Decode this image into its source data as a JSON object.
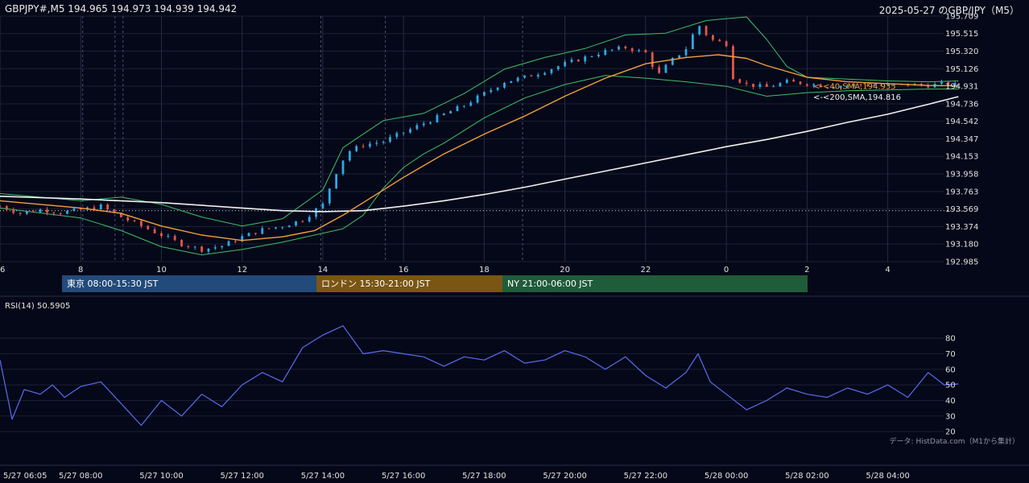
{
  "header": {
    "symbol_line": "GBPJPY#,M5 194.965 194.973 194.939 194.942",
    "title": "2025-05-27 のGBP/JPY（M5）"
  },
  "colors": {
    "background": "#050818",
    "bull": "#2fa8e6",
    "bear": "#e2574c",
    "sma40": "#f3a03c",
    "sma200": "#f0f0f0",
    "bollinger": "#3fbf6a",
    "rsi": "#5a6cf0"
  },
  "sessions": [
    {
      "label": "東京 08:00-15:30 JST",
      "color": "#224a7a"
    },
    {
      "label": "ロンドン 15:30-21:00 JST",
      "color": "#7a5513"
    },
    {
      "label": "NY 21:00-06:00 JST",
      "color": "#1f5c3a"
    }
  ],
  "rsi_panel": {
    "label": "RSI(14) 50.5905"
  },
  "credit": "データ: HistData.com（M1から集計）",
  "ma_labels": {
    "sma40": "<-<40,SMA,194.935",
    "sma200": "<-<200,SMA,194.816"
  },
  "chart_data": [
    {
      "type": "candlestick",
      "title": "2025-05-27 のGBP/JPY（M5）",
      "ylim": [
        192.985,
        195.709
      ],
      "y_ticks": [
        195.709,
        195.515,
        195.32,
        195.126,
        194.931,
        194.736,
        194.542,
        194.347,
        194.153,
        193.958,
        193.763,
        193.569,
        193.374,
        193.18,
        192.985
      ],
      "x_ticks": [
        "6",
        "8",
        "10",
        "12",
        "14",
        "16",
        "18",
        "20",
        "22",
        "0",
        "2",
        "4"
      ],
      "x_tick_hours": [
        6,
        8,
        10,
        12,
        14,
        16,
        18,
        20,
        22,
        24,
        26,
        28
      ],
      "x_range_hours": [
        6,
        31.5
      ],
      "data_end_hour": 29.75,
      "reference_line": 193.55,
      "price_path": [
        [
          6.0,
          193.6
        ],
        [
          6.5,
          193.52
        ],
        [
          7.0,
          193.56
        ],
        [
          7.5,
          193.53
        ],
        [
          8.0,
          193.56
        ],
        [
          8.5,
          193.6
        ],
        [
          9.0,
          193.48
        ],
        [
          9.5,
          193.38
        ],
        [
          10.0,
          193.28
        ],
        [
          10.5,
          193.18
        ],
        [
          11.0,
          193.12
        ],
        [
          11.5,
          193.16
        ],
        [
          12.0,
          193.26
        ],
        [
          12.5,
          193.34
        ],
        [
          13.0,
          193.38
        ],
        [
          13.5,
          193.45
        ],
        [
          14.0,
          193.62
        ],
        [
          14.3,
          193.95
        ],
        [
          14.6,
          194.2
        ],
        [
          15.0,
          194.28
        ],
        [
          15.5,
          194.32
        ],
        [
          16.0,
          194.42
        ],
        [
          16.5,
          194.52
        ],
        [
          17.0,
          194.62
        ],
        [
          17.5,
          194.72
        ],
        [
          18.0,
          194.85
        ],
        [
          18.5,
          194.98
        ],
        [
          19.0,
          195.03
        ],
        [
          19.5,
          195.1
        ],
        [
          20.0,
          195.18
        ],
        [
          20.5,
          195.25
        ],
        [
          21.0,
          195.32
        ],
        [
          21.5,
          195.36
        ],
        [
          22.0,
          195.3
        ],
        [
          22.3,
          195.05
        ],
        [
          22.6,
          195.2
        ],
        [
          23.0,
          195.35
        ],
        [
          23.3,
          195.62
        ],
        [
          23.6,
          195.45
        ],
        [
          24.0,
          195.4
        ],
        [
          24.1,
          195.05
        ],
        [
          24.5,
          194.95
        ],
        [
          25.0,
          194.92
        ],
        [
          25.5,
          194.98
        ],
        [
          26.0,
          194.96
        ],
        [
          26.5,
          194.93
        ],
        [
          27.0,
          194.94
        ],
        [
          27.5,
          194.95
        ],
        [
          28.0,
          194.94
        ],
        [
          28.5,
          194.95
        ],
        [
          29.0,
          194.94
        ],
        [
          29.4,
          194.96
        ],
        [
          29.75,
          194.942
        ]
      ],
      "sma40": [
        [
          6.0,
          193.66
        ],
        [
          7.0,
          193.62
        ],
        [
          8.0,
          193.58
        ],
        [
          9.0,
          193.52
        ],
        [
          10.0,
          193.38
        ],
        [
          11.0,
          193.28
        ],
        [
          12.0,
          193.22
        ],
        [
          13.0,
          193.26
        ],
        [
          13.8,
          193.33
        ],
        [
          14.5,
          193.5
        ],
        [
          15.0,
          193.64
        ],
        [
          16.0,
          193.92
        ],
        [
          17.0,
          194.18
        ],
        [
          18.0,
          194.4
        ],
        [
          19.0,
          194.6
        ],
        [
          20.0,
          194.82
        ],
        [
          21.0,
          195.02
        ],
        [
          22.0,
          195.18
        ],
        [
          23.0,
          195.25
        ],
        [
          23.8,
          195.28
        ],
        [
          24.5,
          195.24
        ],
        [
          25.0,
          195.16
        ],
        [
          26.0,
          195.03
        ],
        [
          27.0,
          194.98
        ],
        [
          28.0,
          194.96
        ],
        [
          29.0,
          194.94
        ],
        [
          29.75,
          194.935
        ]
      ],
      "sma200": [
        [
          6.0,
          193.71
        ],
        [
          8.0,
          193.68
        ],
        [
          10.0,
          193.64
        ],
        [
          12.0,
          193.58
        ],
        [
          13.0,
          193.55
        ],
        [
          14.0,
          193.54
        ],
        [
          15.0,
          193.55
        ],
        [
          16.0,
          193.6
        ],
        [
          17.0,
          193.66
        ],
        [
          18.0,
          193.73
        ],
        [
          19.0,
          193.81
        ],
        [
          20.0,
          193.9
        ],
        [
          21.0,
          193.99
        ],
        [
          22.0,
          194.08
        ],
        [
          23.0,
          194.17
        ],
        [
          24.0,
          194.26
        ],
        [
          25.0,
          194.34
        ],
        [
          26.0,
          194.43
        ],
        [
          27.0,
          194.53
        ],
        [
          28.0,
          194.62
        ],
        [
          29.0,
          194.73
        ],
        [
          29.75,
          194.816
        ]
      ],
      "bb_upper": [
        [
          6.0,
          193.74
        ],
        [
          8.0,
          193.66
        ],
        [
          9.0,
          193.7
        ],
        [
          10.0,
          193.62
        ],
        [
          11.0,
          193.48
        ],
        [
          12.0,
          193.38
        ],
        [
          13.0,
          193.46
        ],
        [
          14.0,
          193.78
        ],
        [
          14.5,
          194.25
        ],
        [
          15.0,
          194.4
        ],
        [
          15.5,
          194.55
        ],
        [
          16.5,
          194.63
        ],
        [
          17.5,
          194.85
        ],
        [
          18.5,
          195.12
        ],
        [
          19.5,
          195.25
        ],
        [
          20.5,
          195.35
        ],
        [
          21.5,
          195.5
        ],
        [
          22.5,
          195.52
        ],
        [
          23.5,
          195.66
        ],
        [
          24.5,
          195.7
        ],
        [
          25.0,
          195.45
        ],
        [
          25.5,
          195.15
        ],
        [
          26.0,
          195.03
        ],
        [
          27.0,
          195.01
        ],
        [
          28.0,
          194.99
        ],
        [
          29.0,
          194.98
        ],
        [
          29.75,
          194.99
        ]
      ],
      "bb_lower": [
        [
          6.0,
          193.58
        ],
        [
          8.0,
          193.47
        ],
        [
          9.0,
          193.33
        ],
        [
          10.0,
          193.15
        ],
        [
          11.0,
          193.06
        ],
        [
          12.0,
          193.12
        ],
        [
          13.0,
          193.2
        ],
        [
          14.0,
          193.3
        ],
        [
          14.5,
          193.35
        ],
        [
          15.0,
          193.5
        ],
        [
          15.5,
          193.8
        ],
        [
          16.0,
          194.03
        ],
        [
          16.5,
          194.18
        ],
        [
          17.0,
          194.3
        ],
        [
          18.0,
          194.58
        ],
        [
          19.0,
          194.8
        ],
        [
          20.0,
          194.95
        ],
        [
          21.0,
          195.05
        ],
        [
          22.0,
          195.02
        ],
        [
          23.0,
          194.98
        ],
        [
          24.0,
          194.93
        ],
        [
          25.0,
          194.82
        ],
        [
          26.0,
          194.86
        ],
        [
          27.0,
          194.88
        ],
        [
          28.0,
          194.89
        ],
        [
          29.0,
          194.9
        ],
        [
          29.75,
          194.9
        ]
      ]
    },
    {
      "type": "line",
      "title": "RSI(14) 50.5905",
      "ylim": [
        18,
        93
      ],
      "y_ticks": [
        80,
        70,
        60,
        50,
        40,
        30,
        20
      ],
      "x_range_hours": [
        6,
        31.5
      ],
      "x_ticks": [
        "5/27 06:05",
        "5/27 08:00",
        "5/27 10:00",
        "5/27 12:00",
        "5/27 14:00",
        "5/27 16:00",
        "5/27 18:00",
        "5/27 20:00",
        "5/27 22:00",
        "5/28 00:00",
        "5/28 02:00",
        "5/28 04:00"
      ],
      "x_tick_hours": [
        6.08,
        8,
        10,
        12,
        14,
        16,
        18,
        20,
        22,
        24,
        26,
        28
      ],
      "series": [
        {
          "values": [
            [
              6.0,
              66
            ],
            [
              6.3,
              28
            ],
            [
              6.6,
              47
            ],
            [
              7.0,
              44
            ],
            [
              7.3,
              50
            ],
            [
              7.6,
              42
            ],
            [
              8.0,
              49
            ],
            [
              8.5,
              52
            ],
            [
              9.0,
              38
            ],
            [
              9.5,
              24
            ],
            [
              10.0,
              40
            ],
            [
              10.5,
              30
            ],
            [
              11.0,
              44
            ],
            [
              11.5,
              36
            ],
            [
              12.0,
              50
            ],
            [
              12.5,
              58
            ],
            [
              13.0,
              52
            ],
            [
              13.5,
              74
            ],
            [
              14.0,
              82
            ],
            [
              14.5,
              88
            ],
            [
              15.0,
              70
            ],
            [
              15.5,
              72
            ],
            [
              16.0,
              70
            ],
            [
              16.5,
              68
            ],
            [
              17.0,
              62
            ],
            [
              17.5,
              68
            ],
            [
              18.0,
              66
            ],
            [
              18.5,
              72
            ],
            [
              19.0,
              64
            ],
            [
              19.5,
              66
            ],
            [
              20.0,
              72
            ],
            [
              20.5,
              68
            ],
            [
              21.0,
              60
            ],
            [
              21.5,
              68
            ],
            [
              22.0,
              56
            ],
            [
              22.5,
              48
            ],
            [
              23.0,
              58
            ],
            [
              23.3,
              70
            ],
            [
              23.6,
              52
            ],
            [
              24.0,
              44
            ],
            [
              24.5,
              34
            ],
            [
              25.0,
              40
            ],
            [
              25.5,
              48
            ],
            [
              26.0,
              44
            ],
            [
              26.5,
              42
            ],
            [
              27.0,
              48
            ],
            [
              27.5,
              44
            ],
            [
              28.0,
              50
            ],
            [
              28.5,
              42
            ],
            [
              29.0,
              58
            ],
            [
              29.4,
              50
            ],
            [
              29.75,
              50.5905
            ]
          ]
        }
      ]
    }
  ]
}
